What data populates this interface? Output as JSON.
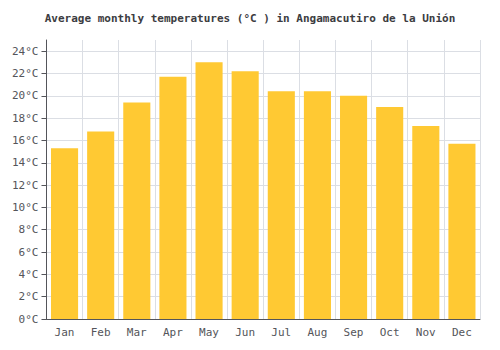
{
  "chart_data": {
    "type": "bar",
    "title": "Average monthly temperatures (°C ) in Angamacutiro de la Unión",
    "categories": [
      "Jan",
      "Feb",
      "Mar",
      "Apr",
      "May",
      "Jun",
      "Jul",
      "Aug",
      "Sep",
      "Oct",
      "Nov",
      "Dec"
    ],
    "values": [
      15.3,
      16.8,
      19.4,
      21.7,
      23.0,
      22.2,
      20.4,
      20.4,
      20.0,
      19.0,
      17.3,
      15.7
    ],
    "color": "#FFC933",
    "ylim": [
      0,
      25
    ],
    "yticks": [
      {
        "value": 0,
        "label": "0°C"
      },
      {
        "value": 2,
        "label": "2°C"
      },
      {
        "value": 4,
        "label": "4°C"
      },
      {
        "value": 6,
        "label": "6°C"
      },
      {
        "value": 8,
        "label": "8°C"
      },
      {
        "value": 10,
        "label": "10°C"
      },
      {
        "value": 12,
        "label": "12°C"
      },
      {
        "value": 14,
        "label": "14°C"
      },
      {
        "value": 16,
        "label": "16°C"
      },
      {
        "value": 18,
        "label": "18°C"
      },
      {
        "value": 20,
        "label": "20°C"
      },
      {
        "value": 22,
        "label": "22°C"
      },
      {
        "value": 24,
        "label": "24°C"
      }
    ],
    "grid": true
  }
}
